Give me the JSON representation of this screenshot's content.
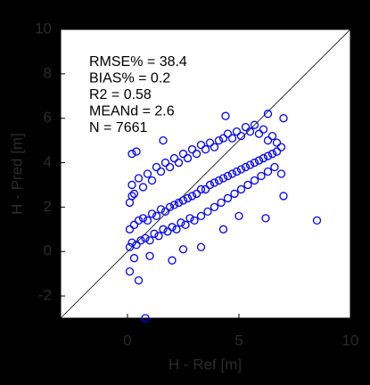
{
  "chart_data": {
    "type": "scatter",
    "xlabel": "H - Ref [m]",
    "ylabel": "H - Pred [m]",
    "annotations": [
      "RMSE% = 38.4",
      "BIAS% = 0.2",
      "R2 = 0.58",
      "MEANd = 2.6",
      "N = 7661"
    ],
    "xlim": [
      -3,
      10
    ],
    "ylim": [
      -3,
      10
    ],
    "xticks": [
      0,
      5,
      10
    ],
    "yticks": [
      -2,
      0,
      2,
      4,
      6,
      8,
      10
    ],
    "color": "#0000ff",
    "x": [
      0.1,
      0.3,
      0.5,
      0.7,
      0.9,
      1.1,
      1.3,
      1.5,
      1.7,
      1.9,
      2.1,
      2.3,
      2.5,
      2.7,
      2.9,
      3.1,
      3.3,
      3.5,
      3.7,
      3.9,
      4.1,
      4.3,
      4.5,
      4.7,
      4.9,
      5.1,
      5.3,
      5.5,
      5.7,
      5.9,
      6.1,
      6.3,
      6.5,
      6.7,
      0.1,
      0.2,
      0.4,
      0.6,
      0.8,
      1.0,
      1.2,
      1.4,
      1.6,
      1.8,
      2.0,
      2.2,
      2.4,
      2.6,
      2.8,
      3.0,
      3.3,
      3.6,
      3.9,
      4.2,
      4.5,
      4.8,
      5.1,
      5.4,
      5.7,
      6.0,
      6.3,
      6.6,
      6.9,
      0.1,
      0.2,
      0.3,
      0.5,
      0.7,
      0.9,
      1.1,
      1.3,
      1.5,
      1.7,
      1.9,
      2.1,
      2.3,
      2.5,
      2.7,
      2.9,
      3.1,
      3.3,
      3.5,
      3.7,
      3.9,
      4.1,
      4.3,
      4.5,
      4.7,
      4.9,
      5.1,
      5.3,
      5.5,
      5.7,
      5.9,
      6.1,
      6.3,
      6.5,
      6.7,
      6.9,
      0.2,
      0.4,
      0.3,
      0.1,
      0.5,
      0.8,
      2.0,
      3.3,
      4.3,
      5.0,
      6.2,
      7.0,
      8.5,
      6.3,
      7.0,
      4.4,
      1.6,
      2.5,
      1.0,
      0.2
    ],
    "values": [
      1.0,
      1.2,
      1.4,
      1.5,
      1.4,
      1.7,
      1.6,
      1.9,
      1.8,
      2.0,
      2.1,
      2.2,
      2.3,
      2.4,
      2.5,
      2.6,
      2.8,
      2.8,
      3.0,
      3.1,
      3.2,
      3.3,
      3.4,
      3.5,
      3.6,
      3.7,
      3.8,
      3.9,
      4.0,
      4.1,
      4.2,
      4.3,
      4.4,
      4.5,
      0.2,
      0.4,
      0.3,
      0.5,
      0.6,
      0.5,
      0.8,
      0.7,
      1.0,
      0.9,
      1.1,
      1.0,
      1.3,
      1.2,
      1.5,
      1.4,
      1.6,
      1.8,
      2.0,
      2.2,
      2.4,
      2.6,
      2.8,
      3.0,
      3.2,
      3.4,
      3.6,
      3.8,
      3.5,
      2.2,
      3.0,
      2.6,
      3.3,
      2.9,
      3.5,
      3.2,
      3.8,
      3.6,
      4.0,
      3.8,
      4.2,
      4.0,
      4.4,
      4.2,
      4.6,
      4.4,
      4.8,
      4.6,
      4.9,
      4.7,
      5.0,
      5.1,
      5.3,
      5.1,
      5.4,
      5.2,
      5.6,
      5.4,
      5.7,
      5.3,
      5.5,
      5.0,
      5.2,
      4.9,
      4.7,
      4.4,
      4.5,
      -0.3,
      -0.9,
      -1.3,
      -3.0,
      -0.4,
      0.2,
      1.0,
      1.6,
      1.5,
      2.5,
      1.4,
      6.2,
      6.0,
      6.1,
      5.0,
      0.1,
      -0.2,
      2.5
    ]
  }
}
